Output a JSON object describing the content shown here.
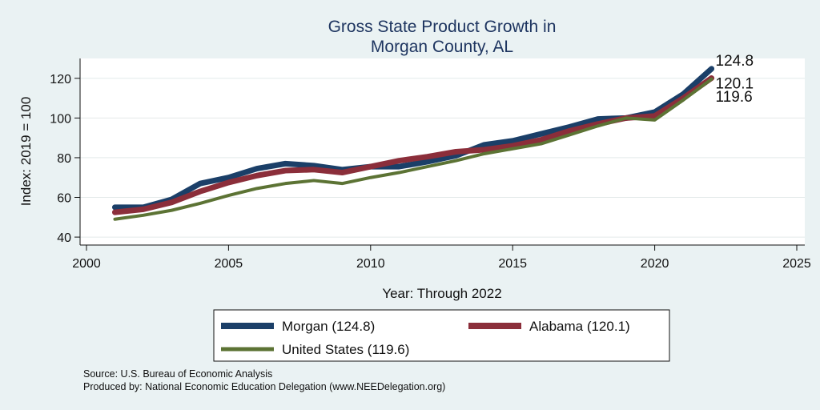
{
  "chart_data": {
    "type": "line",
    "title": [
      "Gross State Product Growth in",
      "Morgan County, AL"
    ],
    "xlabel": "Year: Through 2022",
    "ylabel": "Index: 2019 = 100",
    "xlim": [
      2000,
      2025
    ],
    "ylim": [
      36,
      130
    ],
    "xticks": [
      2000,
      2005,
      2010,
      2015,
      2020,
      2025
    ],
    "yticks": [
      40,
      60,
      80,
      100,
      120
    ],
    "grid": true,
    "x": [
      2001,
      2002,
      2003,
      2004,
      2005,
      2006,
      2007,
      2008,
      2009,
      2010,
      2011,
      2012,
      2013,
      2014,
      2015,
      2016,
      2017,
      2018,
      2019,
      2020,
      2021,
      2022
    ],
    "series": [
      {
        "name": "Morgan",
        "color": "#1b3f68",
        "end_label": "124.8",
        "legend_label": "Morgan  (124.8)",
        "values": [
          55,
          55,
          59,
          67,
          70,
          74.5,
          77,
          76,
          74,
          75.5,
          75.5,
          78,
          81,
          86.5,
          88.5,
          92,
          95.5,
          99.5,
          100,
          103,
          112,
          124.8
        ]
      },
      {
        "name": "Alabama",
        "color": "#8b2e3a",
        "end_label": "120.1",
        "legend_label": "Alabama (120.1)",
        "values": [
          52.5,
          54,
          57.5,
          63,
          67.5,
          71,
          73.5,
          74,
          72.5,
          75.5,
          78.5,
          80.5,
          83,
          84,
          86,
          89,
          93.5,
          97,
          100,
          101,
          110,
          120.1
        ]
      },
      {
        "name": "United States",
        "color": "#5c7334",
        "end_label": "119.6",
        "legend_label": "United States (119.6)",
        "values": [
          49,
          51,
          53.5,
          57,
          61,
          64.5,
          67,
          68.5,
          67,
          70,
          72.5,
          75.5,
          78.5,
          82,
          84.5,
          87,
          91.5,
          96,
          100,
          99,
          109,
          119.6
        ]
      }
    ],
    "legend_position": "bottom"
  },
  "source": {
    "line1": "Source: U.S. Bureau of Economic Analysis",
    "line2": "Produced by: National Economic Education Delegation (www.NEEDelegation.org)"
  }
}
